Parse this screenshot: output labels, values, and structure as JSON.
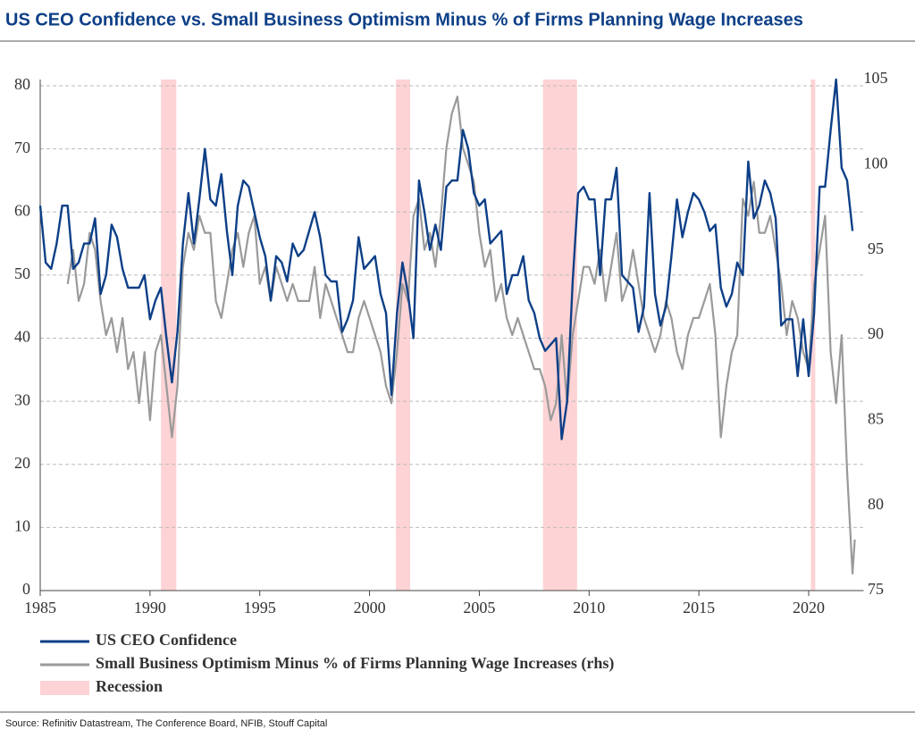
{
  "chart_data": {
    "type": "line",
    "title": "US CEO Confidence vs. Small Business Optimism Minus % of Firms Planning Wage Increases",
    "source": "Source: Refinitiv Datastream, The Conference Board, NFIB, Stouff Capital",
    "xlim": [
      1985,
      2022.5
    ],
    "xticks": [
      1985,
      1990,
      1995,
      2000,
      2005,
      2010,
      2015,
      2020
    ],
    "ylim": [
      0,
      81
    ],
    "yticks": [
      0,
      10,
      20,
      30,
      40,
      50,
      60,
      70,
      80
    ],
    "y2lim": [
      75,
      105
    ],
    "y2ticks": [
      75,
      80,
      85,
      90,
      95,
      100,
      105
    ],
    "grid": true,
    "recession_label": "Recession",
    "recession_color": "#fdd3d5",
    "recessions": [
      [
        1990.5,
        1991.2
      ],
      [
        2001.2,
        2001.85
      ],
      [
        2007.9,
        2009.45
      ],
      [
        2020.1,
        2020.3
      ]
    ],
    "series": [
      {
        "name": "US CEO Confidence",
        "color": "#0d3f87",
        "x": [
          1985,
          1985.25,
          1985.5,
          1985.75,
          1986,
          1986.25,
          1986.5,
          1986.75,
          1987,
          1987.25,
          1987.5,
          1987.75,
          1988,
          1988.25,
          1988.5,
          1988.75,
          1989,
          1989.25,
          1989.5,
          1989.75,
          1990,
          1990.25,
          1990.5,
          1990.75,
          1991,
          1991.25,
          1991.5,
          1991.75,
          1992,
          1992.25,
          1992.5,
          1992.75,
          1993,
          1993.25,
          1993.5,
          1993.75,
          1994,
          1994.25,
          1994.5,
          1994.75,
          1995,
          1995.25,
          1995.5,
          1995.75,
          1996,
          1996.25,
          1996.5,
          1996.75,
          1997,
          1997.25,
          1997.5,
          1997.75,
          1998,
          1998.25,
          1998.5,
          1998.75,
          1999,
          1999.25,
          1999.5,
          1999.75,
          2000,
          2000.25,
          2000.5,
          2000.75,
          2001,
          2001.25,
          2001.5,
          2001.75,
          2002,
          2002.25,
          2002.5,
          2002.75,
          2003,
          2003.25,
          2003.5,
          2003.75,
          2004,
          2004.25,
          2004.5,
          2004.75,
          2005,
          2005.25,
          2005.5,
          2005.75,
          2006,
          2006.25,
          2006.5,
          2006.75,
          2007,
          2007.25,
          2007.5,
          2007.75,
          2008,
          2008.25,
          2008.5,
          2008.75,
          2009,
          2009.25,
          2009.5,
          2009.75,
          2010,
          2010.25,
          2010.5,
          2010.75,
          2011,
          2011.25,
          2011.5,
          2011.75,
          2012,
          2012.25,
          2012.5,
          2012.75,
          2013,
          2013.25,
          2013.5,
          2013.75,
          2014,
          2014.25,
          2014.5,
          2014.75,
          2015,
          2015.25,
          2015.5,
          2015.75,
          2016,
          2016.25,
          2016.5,
          2016.75,
          2017,
          2017.25,
          2017.5,
          2017.75,
          2018,
          2018.25,
          2018.5,
          2018.75,
          2019,
          2019.25,
          2019.5,
          2019.75,
          2020,
          2020.25,
          2020.5,
          2020.75,
          2021,
          2021.25,
          2021.5,
          2021.75,
          2022
        ],
        "values": [
          61,
          52,
          51,
          55,
          61,
          61,
          51,
          52,
          55,
          55,
          59,
          47,
          50,
          58,
          56,
          51,
          48,
          48,
          48,
          50,
          43,
          46,
          48,
          40,
          33,
          41,
          55,
          63,
          55,
          62,
          70,
          62,
          61,
          66,
          57,
          50,
          61,
          65,
          64,
          60,
          56,
          53,
          46,
          53,
          52,
          49,
          55,
          53,
          54,
          57,
          60,
          56,
          50,
          49,
          49,
          41,
          43,
          46,
          56,
          51,
          52,
          53,
          47,
          44,
          31,
          44,
          52,
          47,
          40,
          65,
          60,
          54,
          58,
          54,
          64,
          65,
          65,
          73,
          70,
          63,
          61,
          62,
          55,
          56,
          57,
          47,
          50,
          50,
          53,
          46,
          44,
          40,
          38,
          39,
          40,
          24,
          30,
          49,
          63,
          64,
          62,
          62,
          50,
          62,
          62,
          67,
          50,
          49,
          48,
          41,
          45,
          63,
          47,
          42,
          45,
          53,
          62,
          56,
          60,
          63,
          62,
          60,
          57,
          58,
          48,
          45,
          47,
          52,
          50,
          68,
          59,
          61,
          65,
          63,
          59,
          42,
          43,
          43,
          34,
          43,
          34,
          44,
          64,
          64,
          73,
          81,
          67,
          65,
          57
        ]
      },
      {
        "name": "Small Business Optimism Minus % of Firms Planning Wage Increases (rhs)",
        "color": "#9a9a9a",
        "axis": "y2",
        "x": [
          1986.25,
          1986.5,
          1986.75,
          1987,
          1987.25,
          1987.5,
          1987.75,
          1988,
          1988.25,
          1988.5,
          1988.75,
          1989,
          1989.25,
          1989.5,
          1989.75,
          1990,
          1990.25,
          1990.5,
          1990.75,
          1991,
          1991.25,
          1991.5,
          1991.75,
          1992,
          1992.25,
          1992.5,
          1992.75,
          1993,
          1993.25,
          1993.5,
          1993.75,
          1994,
          1994.25,
          1994.5,
          1994.75,
          1995,
          1995.25,
          1995.5,
          1995.75,
          1996,
          1996.25,
          1996.5,
          1996.75,
          1997,
          1997.25,
          1997.5,
          1997.75,
          1998,
          1998.25,
          1998.5,
          1998.75,
          1999,
          1999.25,
          1999.5,
          1999.75,
          2000,
          2000.25,
          2000.5,
          2000.75,
          2001,
          2001.25,
          2001.5,
          2001.75,
          2002,
          2002.25,
          2002.5,
          2002.75,
          2003,
          2003.25,
          2003.5,
          2003.75,
          2004,
          2004.25,
          2004.5,
          2004.75,
          2005,
          2005.25,
          2005.5,
          2005.75,
          2006,
          2006.25,
          2006.5,
          2006.75,
          2007,
          2007.25,
          2007.5,
          2007.75,
          2008,
          2008.25,
          2008.5,
          2008.75,
          2009,
          2009.25,
          2009.5,
          2009.75,
          2010,
          2010.25,
          2010.5,
          2010.75,
          2011,
          2011.25,
          2011.5,
          2011.75,
          2012,
          2012.25,
          2012.5,
          2012.75,
          2013,
          2013.25,
          2013.5,
          2013.75,
          2014,
          2014.25,
          2014.5,
          2014.75,
          2015,
          2015.25,
          2015.5,
          2015.75,
          2016,
          2016.25,
          2016.5,
          2016.75,
          2017,
          2017.25,
          2017.5,
          2017.75,
          2018,
          2018.25,
          2018.5,
          2018.75,
          2019,
          2019.25,
          2019.5,
          2019.75,
          2020,
          2020.25,
          2020.5,
          2020.75,
          2021,
          2021.25,
          2021.5,
          2021.75,
          2022,
          2022.1
        ],
        "values": [
          93,
          95,
          92,
          93,
          96,
          95,
          92,
          90,
          91,
          89,
          91,
          88,
          89,
          86,
          89,
          85,
          89,
          90,
          87,
          84,
          87,
          94,
          96,
          95,
          97,
          96,
          96,
          92,
          91,
          93,
          95,
          96,
          94,
          96,
          97,
          93,
          94,
          92,
          94,
          93,
          92,
          93,
          92,
          92,
          92,
          94,
          91,
          93,
          92,
          91,
          90,
          89,
          89,
          91,
          92,
          91,
          90,
          89,
          87,
          86,
          89,
          93,
          92,
          97,
          98,
          95,
          96,
          94,
          97,
          101,
          103,
          104,
          101,
          100,
          99,
          96,
          94,
          95,
          92,
          93,
          91,
          90,
          91,
          90,
          89,
          88,
          88,
          87,
          85,
          86,
          90,
          86,
          90,
          92,
          94,
          94,
          93,
          95,
          92,
          94,
          96,
          92,
          93,
          95,
          93,
          91,
          90,
          89,
          90,
          92,
          91,
          89,
          88,
          90,
          91,
          91,
          92,
          93,
          90,
          84,
          87,
          89,
          90,
          98,
          97,
          99,
          96,
          96,
          97,
          95,
          93,
          90,
          92,
          91,
          89,
          88,
          93,
          95,
          97,
          89,
          86,
          90,
          82,
          76,
          78
        ]
      }
    ]
  }
}
